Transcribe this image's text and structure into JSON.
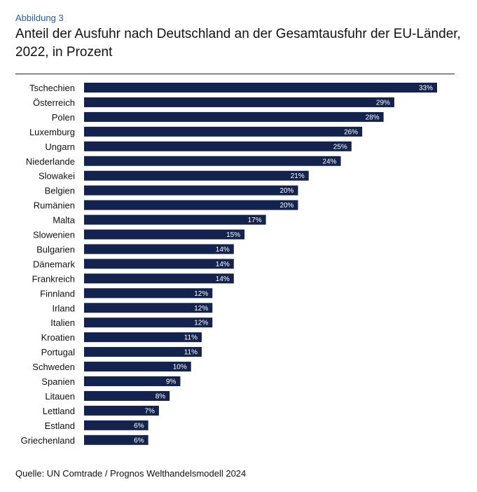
{
  "figure_label": "Abbildung 3",
  "title": "Anteil der Ausfuhr nach Deutschland an der Gesamtausfuhr der EU-Länder, 2022, in Prozent",
  "source": "Quelle: UN Comtrade / Prognos Welthandelsmodell 2024",
  "chart_data": {
    "type": "bar",
    "orientation": "horizontal",
    "bar_color": "#13234d",
    "label_color": "#ffffff",
    "value_suffix": "%",
    "xlim": [
      0,
      33
    ],
    "grid": false,
    "categories": [
      "Tschechien",
      "Österreich",
      "Polen",
      "Luxemburg",
      "Ungarn",
      "Niederlande",
      "Slowakei",
      "Belgien",
      "Rumänien",
      "Malta",
      "Slowenien",
      "Bulgarien",
      "Dänemark",
      "Frankreich",
      "Finnland",
      "Irland",
      "Italien",
      "Kroatien",
      "Portugal",
      "Schweden",
      "Spanien",
      "Litauen",
      "Lettland",
      "Estland",
      "Griechenland"
    ],
    "values": [
      33,
      29,
      28,
      26,
      25,
      24,
      21,
      20,
      20,
      17,
      15,
      14,
      14,
      14,
      12,
      12,
      12,
      11,
      11,
      10,
      9,
      8,
      7,
      6,
      6
    ]
  }
}
